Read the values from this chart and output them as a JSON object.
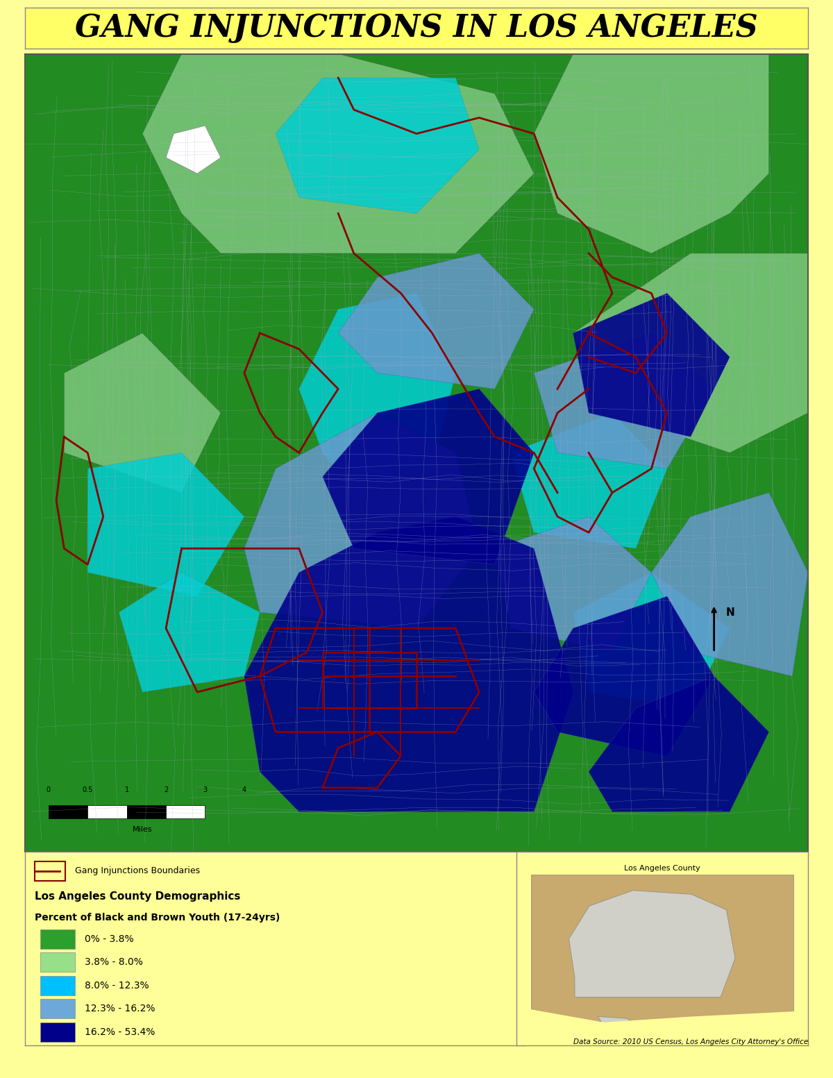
{
  "title": "GANG INJUNCTIONS IN LOS ANGELES",
  "title_bg": "#FFFF66",
  "title_fontsize": 32,
  "outer_bg": "#FFFF99",
  "map_border_color": "#555555",
  "legend_title1": "Los Angeles County Demographics",
  "legend_title2": "Percent of Black and Brown Youth (17-24yrs)",
  "legend_items": [
    {
      "label": "0% - 3.8%",
      "color": "#2CA02C"
    },
    {
      "label": "3.8% - 8.0%",
      "color": "#98DF8A"
    },
    {
      "label": "8.0% - 12.3%",
      "color": "#00BFFF"
    },
    {
      "label": "12.3% - 16.2%",
      "color": "#6EA8D8"
    },
    {
      "label": "16.2% - 53.4%",
      "color": "#00008B"
    }
  ],
  "gang_boundary_color": "#8B0000",
  "gang_boundary_label": "Gang Injunctions Boundaries",
  "data_source": "Data Source: 2010 US Census, Los Angeles City Attorney's Office",
  "scale_bar_label": "Miles",
  "scale_ticks": [
    "0",
    "0.5",
    "1",
    "",
    "2",
    "",
    "3",
    "",
    "4"
  ],
  "inset_title": "Los Angeles County",
  "map_bg_green": "#228B22",
  "map_bg_lightgreen": "#90EE90",
  "map_bg_cyan": "#00CED1",
  "map_bg_blue": "#4169E1",
  "map_bg_darkblue": "#00008B"
}
